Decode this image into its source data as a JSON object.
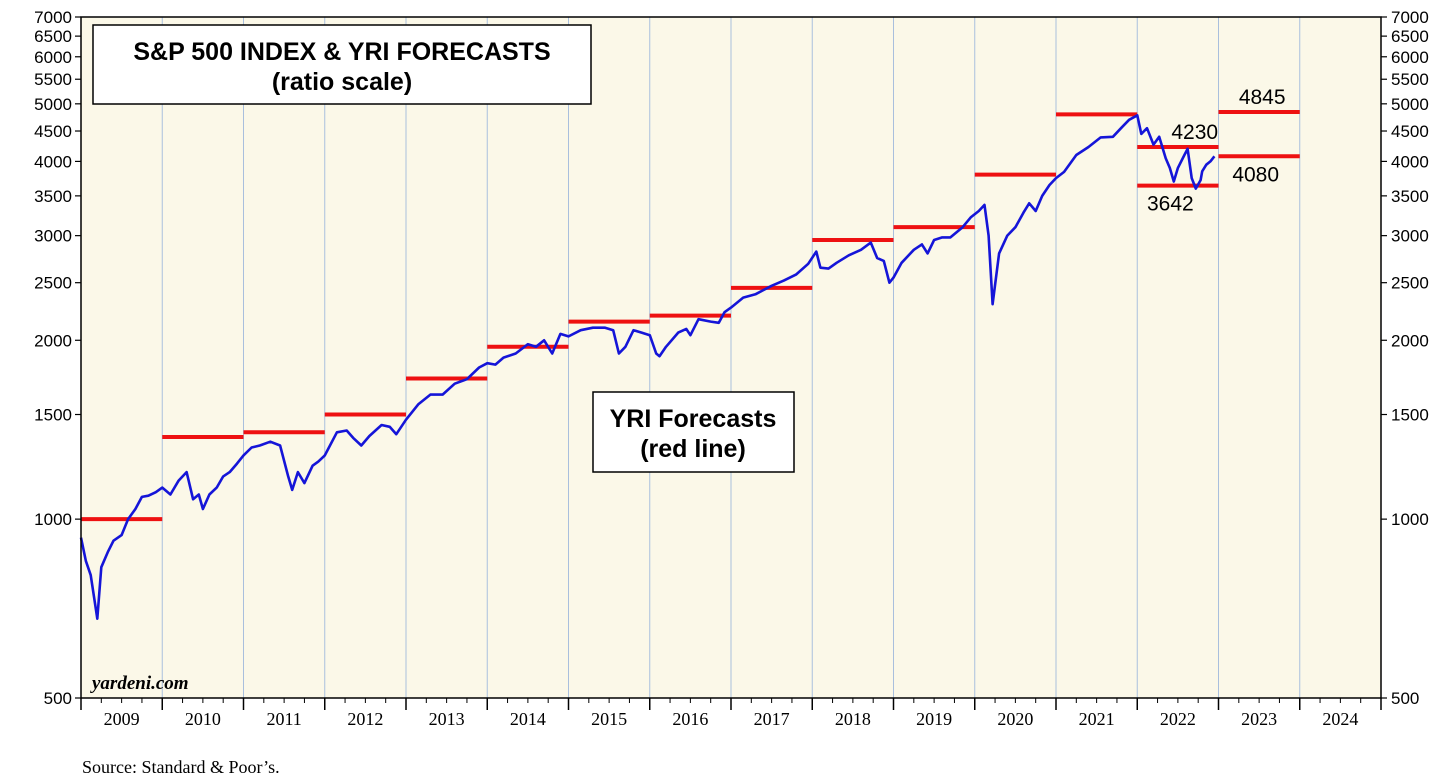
{
  "chart_data": {
    "type": "line",
    "title": "S&P 500 INDEX & YRI FORECASTS",
    "subtitle": "(ratio scale)",
    "y_scale": "log",
    "ylim": [
      500,
      7000
    ],
    "y_ticks": [
      500,
      1000,
      1500,
      2000,
      2500,
      3000,
      3500,
      4000,
      4500,
      5000,
      5500,
      6000,
      6500,
      7000
    ],
    "y_tick_labels": [
      "500",
      "1000",
      "1500",
      "2000",
      "2500",
      "3000",
      "3500",
      "4000",
      "4500",
      "5000",
      "5500",
      "6000",
      "6500",
      "7000"
    ],
    "x_range": [
      2009,
      2025
    ],
    "x_tick_labels": [
      "2009",
      "2010",
      "2011",
      "2012",
      "2013",
      "2014",
      "2015",
      "2016",
      "2017",
      "2018",
      "2019",
      "2020",
      "2021",
      "2022",
      "2023",
      "2024"
    ],
    "grid": "vertical",
    "background_color": "#fbf8e8",
    "series": [
      {
        "color": "#1515d8",
        "x": [
          2009.0,
          2009.06,
          2009.12,
          2009.16,
          2009.2,
          2009.25,
          2009.33,
          2009.4,
          2009.5,
          2009.58,
          2009.67,
          2009.75,
          2009.83,
          2009.92,
          2010.0,
          2010.1,
          2010.2,
          2010.3,
          2010.38,
          2010.45,
          2010.5,
          2010.58,
          2010.67,
          2010.75,
          2010.83,
          2010.92,
          2011.0,
          2011.1,
          2011.2,
          2011.33,
          2011.45,
          2011.55,
          2011.6,
          2011.67,
          2011.75,
          2011.85,
          2011.92,
          2012.0,
          2012.15,
          2012.27,
          2012.35,
          2012.45,
          2012.55,
          2012.7,
          2012.8,
          2012.88,
          2013.0,
          2013.15,
          2013.3,
          2013.45,
          2013.6,
          2013.75,
          2013.9,
          2014.0,
          2014.1,
          2014.2,
          2014.35,
          2014.5,
          2014.6,
          2014.7,
          2014.8,
          2014.9,
          2015.0,
          2015.15,
          2015.3,
          2015.45,
          2015.55,
          2015.62,
          2015.7,
          2015.8,
          2015.9,
          2016.0,
          2016.08,
          2016.12,
          2016.2,
          2016.35,
          2016.45,
          2016.5,
          2016.6,
          2016.75,
          2016.85,
          2016.92,
          2017.0,
          2017.15,
          2017.3,
          2017.5,
          2017.65,
          2017.8,
          2017.95,
          2018.05,
          2018.1,
          2018.2,
          2018.3,
          2018.45,
          2018.6,
          2018.72,
          2018.8,
          2018.88,
          2018.95,
          2019.0,
          2019.1,
          2019.25,
          2019.35,
          2019.42,
          2019.5,
          2019.6,
          2019.7,
          2019.85,
          2019.95,
          2020.05,
          2020.12,
          2020.17,
          2020.22,
          2020.3,
          2020.4,
          2020.5,
          2020.6,
          2020.67,
          2020.75,
          2020.83,
          2020.92,
          2021.0,
          2021.1,
          2021.25,
          2021.4,
          2021.55,
          2021.7,
          2021.8,
          2021.9,
          2022.0,
          2022.05,
          2022.12,
          2022.2,
          2022.27,
          2022.35,
          2022.4,
          2022.45,
          2022.5,
          2022.58,
          2022.62,
          2022.67,
          2022.72,
          2022.78,
          2022.8,
          2022.85,
          2022.9,
          2022.95
        ],
        "y": [
          931,
          850,
          805,
          740,
          680,
          830,
          880,
          920,
          940,
          1000,
          1040,
          1090,
          1095,
          1110,
          1130,
          1100,
          1160,
          1200,
          1080,
          1100,
          1040,
          1100,
          1130,
          1180,
          1200,
          1240,
          1280,
          1320,
          1330,
          1350,
          1330,
          1180,
          1120,
          1200,
          1150,
          1230,
          1250,
          1280,
          1400,
          1410,
          1370,
          1330,
          1380,
          1440,
          1430,
          1390,
          1470,
          1560,
          1620,
          1620,
          1690,
          1720,
          1800,
          1830,
          1820,
          1870,
          1900,
          1970,
          1950,
          2000,
          1900,
          2050,
          2030,
          2080,
          2100,
          2100,
          2080,
          1900,
          1950,
          2080,
          2060,
          2040,
          1900,
          1880,
          1950,
          2060,
          2090,
          2040,
          2170,
          2150,
          2140,
          2230,
          2270,
          2360,
          2390,
          2470,
          2520,
          2580,
          2690,
          2820,
          2650,
          2640,
          2700,
          2780,
          2840,
          2920,
          2750,
          2720,
          2500,
          2550,
          2700,
          2840,
          2900,
          2800,
          2950,
          2980,
          2980,
          3100,
          3220,
          3300,
          3380,
          3000,
          2300,
          2800,
          3000,
          3100,
          3280,
          3400,
          3300,
          3500,
          3650,
          3750,
          3840,
          4100,
          4230,
          4390,
          4400,
          4550,
          4700,
          4780,
          4450,
          4550,
          4270,
          4400,
          4050,
          3900,
          3700,
          3900,
          4100,
          4200,
          3750,
          3600,
          3720,
          3850,
          3950,
          4000,
          4080
        ]
      }
    ],
    "forecasts": [
      {
        "x0": 2009,
        "x1": 2010,
        "value": 1000
      },
      {
        "x0": 2010,
        "x1": 2011,
        "value": 1375
      },
      {
        "x0": 2011,
        "x1": 2012,
        "value": 1400
      },
      {
        "x0": 2012,
        "x1": 2013,
        "value": 1500
      },
      {
        "x0": 2013,
        "x1": 2014,
        "value": 1725
      },
      {
        "x0": 2014,
        "x1": 2015,
        "value": 1950
      },
      {
        "x0": 2015,
        "x1": 2016,
        "value": 2150
      },
      {
        "x0": 2016,
        "x1": 2017,
        "value": 2200
      },
      {
        "x0": 2017,
        "x1": 2018,
        "value": 2450
      },
      {
        "x0": 2018,
        "x1": 2019,
        "value": 2950
      },
      {
        "x0": 2019,
        "x1": 2020,
        "value": 3100
      },
      {
        "x0": 2020,
        "x1": 2021,
        "value": 3800
      },
      {
        "x0": 2021,
        "x1": 2022,
        "value": 4800
      },
      {
        "x0": 2022,
        "x1": 2023,
        "value": 4230
      },
      {
        "x0": 2022,
        "x1": 2023,
        "value": 3642
      },
      {
        "x0": 2023,
        "x1": 2024,
        "value": 4845
      },
      {
        "x0": 2023,
        "x1": 2024,
        "value": 4080
      }
    ],
    "forecast_color": "#ee1111",
    "annotations": [
      {
        "text": "4845",
        "x": 2023.25,
        "value": 4845,
        "side": "above"
      },
      {
        "text": "4230",
        "x": 2022.42,
        "value": 4230,
        "side": "above"
      },
      {
        "text": "4080",
        "x": 2023.17,
        "value": 4080,
        "side": "below"
      },
      {
        "text": "3642",
        "x": 2022.12,
        "value": 3642,
        "side": "below"
      }
    ],
    "legend_box": {
      "line1": "YRI Forecasts",
      "line2": "(red line)"
    },
    "brand": "yardeni.com"
  },
  "source": "Source: Standard & Poor’s."
}
